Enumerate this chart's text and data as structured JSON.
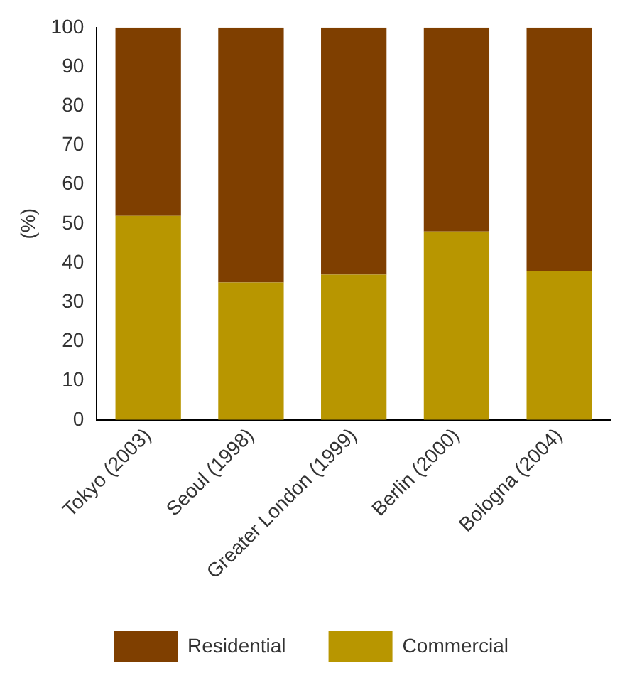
{
  "chart_data": {
    "type": "bar",
    "stacked": true,
    "ylabel": "(%)",
    "categories": [
      "Tokyo (2003)",
      "Seoul (1998)",
      "Greater London (1999)",
      "Berlin (2000)",
      "Bologna (2004)"
    ],
    "series": [
      {
        "name": "Commercial",
        "color": "#b89600",
        "values": [
          52,
          35,
          37,
          48,
          38
        ]
      },
      {
        "name": "Residential",
        "color": "#7f3f00",
        "values": [
          48,
          65,
          63,
          52,
          62
        ]
      }
    ],
    "ylim": [
      0,
      100
    ],
    "yticks": [
      0,
      10,
      20,
      30,
      40,
      50,
      60,
      70,
      80,
      90,
      100
    ],
    "grid": false,
    "legend": "bottom"
  }
}
